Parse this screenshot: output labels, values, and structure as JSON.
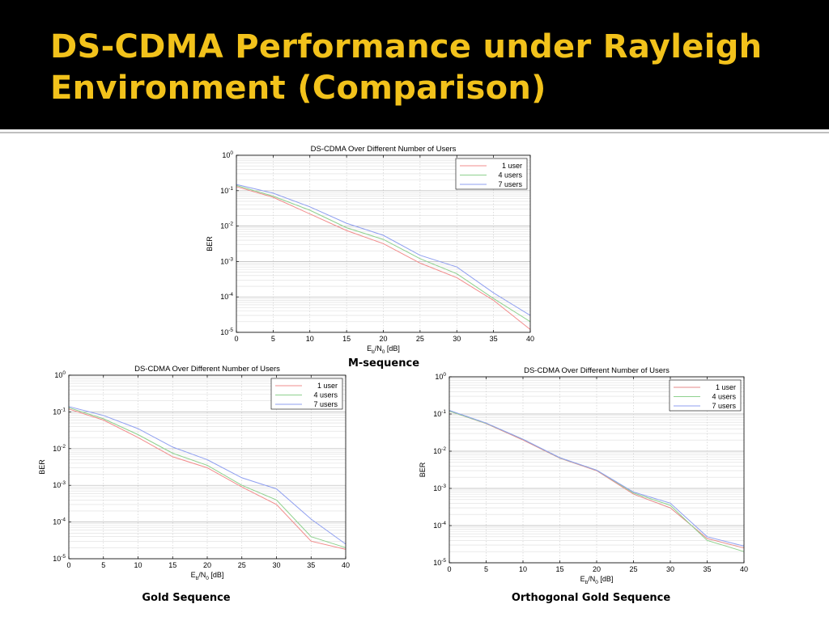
{
  "slide": {
    "title_line1": "DS-CDMA Performance under Rayleigh",
    "title_line2": "Environment (Comparison)",
    "title_color": "#f2c21b",
    "header_background": "#000000"
  },
  "captions": {
    "m_sequence": "M-sequence",
    "gold": "Gold Sequence",
    "orthogonal_gold": "Orthogonal Gold Sequence"
  },
  "chart_data": [
    {
      "type": "line",
      "title": "DS-CDMA Over Different Number of Users",
      "xlabel": "E_b/N_0 [dB]",
      "ylabel": "BER",
      "xlim": [
        0,
        40
      ],
      "ylim": [
        1e-05,
        1
      ],
      "yscale": "log",
      "grid": true,
      "legend_position": "top-right",
      "x_ticks": [
        "0",
        "5",
        "10",
        "15",
        "20",
        "25",
        "30",
        "35",
        "40"
      ],
      "y_tick_exponents": [
        "0",
        "-1",
        "-2",
        "-3",
        "-4",
        "-5"
      ],
      "x": [
        0,
        5,
        10,
        15,
        20,
        25,
        30,
        35,
        40
      ],
      "series": [
        {
          "name": "1 user",
          "color": "#f28c8c",
          "values": [
            0.13,
            0.065,
            0.022,
            0.0075,
            0.0032,
            0.0009,
            0.00035,
            8e-05,
            1.2e-05
          ]
        },
        {
          "name": "4 users",
          "color": "#8ed18e",
          "values": [
            0.14,
            0.07,
            0.028,
            0.009,
            0.0042,
            0.0012,
            0.00045,
            9e-05,
            2e-05
          ]
        },
        {
          "name": "7 users",
          "color": "#8f9ff0",
          "values": [
            0.15,
            0.085,
            0.035,
            0.012,
            0.0055,
            0.0015,
            0.0007,
            0.00013,
            3e-05
          ]
        }
      ]
    },
    {
      "type": "line",
      "title": "DS-CDMA Over Different Number of Users",
      "xlabel": "E_b/N_0 [dB]",
      "ylabel": "BER",
      "xlim": [
        0,
        40
      ],
      "ylim": [
        1e-05,
        1
      ],
      "yscale": "log",
      "grid": true,
      "legend_position": "top-right",
      "x_ticks": [
        "0",
        "5",
        "10",
        "15",
        "20",
        "25",
        "30",
        "35",
        "40"
      ],
      "y_tick_exponents": [
        "0",
        "-1",
        "-2",
        "-3",
        "-4",
        "-5"
      ],
      "x": [
        0,
        5,
        10,
        15,
        20,
        25,
        30,
        35,
        40
      ],
      "series": [
        {
          "name": "1 user",
          "color": "#f28c8c",
          "values": [
            0.12,
            0.06,
            0.02,
            0.006,
            0.003,
            0.0009,
            0.0003,
            3e-05,
            1.8e-05
          ]
        },
        {
          "name": "4 users",
          "color": "#8ed18e",
          "values": [
            0.13,
            0.065,
            0.024,
            0.0075,
            0.0035,
            0.001,
            0.0004,
            4e-05,
            2e-05
          ]
        },
        {
          "name": "7 users",
          "color": "#8f9ff0",
          "values": [
            0.14,
            0.08,
            0.035,
            0.011,
            0.005,
            0.0016,
            0.0008,
            0.00012,
            2.5e-05
          ]
        }
      ]
    },
    {
      "type": "line",
      "title": "DS-CDMA Over Different Number of Users",
      "xlabel": "E_b/N_0 [dB]",
      "ylabel": "BER",
      "xlim": [
        0,
        40
      ],
      "ylim": [
        1e-05,
        1
      ],
      "yscale": "log",
      "grid": true,
      "legend_position": "top-right",
      "x_ticks": [
        "0",
        "5",
        "10",
        "15",
        "20",
        "25",
        "30",
        "35",
        "40"
      ],
      "y_tick_exponents": [
        "0",
        "-1",
        "-2",
        "-3",
        "-4",
        "-5"
      ],
      "x": [
        0,
        5,
        10,
        15,
        20,
        25,
        30,
        35,
        40
      ],
      "series": [
        {
          "name": "1 user",
          "color": "#e58a8a",
          "values": [
            0.12,
            0.055,
            0.02,
            0.0065,
            0.003,
            0.0007,
            0.0003,
            4.5e-05,
            2.5e-05
          ]
        },
        {
          "name": "4 users",
          "color": "#8ed18e",
          "values": [
            0.12,
            0.056,
            0.021,
            0.0066,
            0.0031,
            0.00075,
            0.00035,
            4e-05,
            2e-05
          ]
        },
        {
          "name": "7 users",
          "color": "#8f9ff0",
          "values": [
            0.125,
            0.057,
            0.021,
            0.0067,
            0.0031,
            0.0008,
            0.0004,
            5e-05,
            2.8e-05
          ]
        }
      ]
    }
  ]
}
